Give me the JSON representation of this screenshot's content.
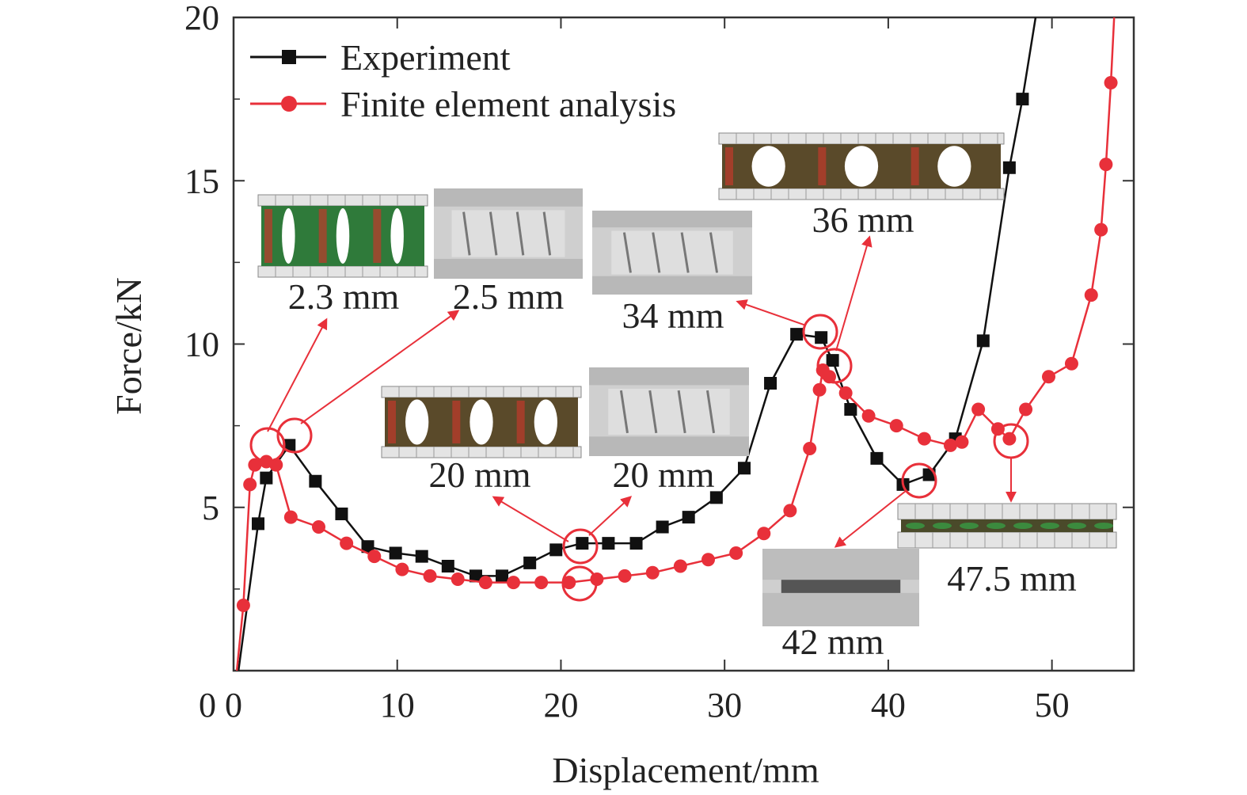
{
  "chart_data": {
    "type": "line",
    "xlabel": "Displacement/mm",
    "ylabel": "Force/kN",
    "xlim": [
      0,
      55
    ],
    "ylim": [
      0,
      20
    ],
    "xticks": [
      0,
      10,
      20,
      30,
      40,
      50
    ],
    "yticks": [
      5,
      10,
      15,
      20
    ],
    "grid": false,
    "legend_position": "top-left",
    "series": [
      {
        "name": "Experiment",
        "color": "#111111",
        "marker": "square",
        "x": [
          0.3,
          1.5,
          2.0,
          3.4,
          5.0,
          6.6,
          8.2,
          9.9,
          11.5,
          13.1,
          14.8,
          16.4,
          18.1,
          19.7,
          21.3,
          22.9,
          24.6,
          26.2,
          27.8,
          29.5,
          31.2,
          32.8,
          34.4,
          35.9,
          36.6,
          37.7,
          39.3,
          40.9,
          42.5,
          44.1,
          45.8,
          47.4,
          48.2,
          49.0
        ],
        "y": [
          0.0,
          4.5,
          5.9,
          6.9,
          5.8,
          4.8,
          3.8,
          3.6,
          3.5,
          3.2,
          2.9,
          2.9,
          3.3,
          3.7,
          3.9,
          3.9,
          3.9,
          4.4,
          4.7,
          5.3,
          6.2,
          8.8,
          10.3,
          10.2,
          9.5,
          8.0,
          6.5,
          5.7,
          6.0,
          7.1,
          10.1,
          15.4,
          17.5,
          20.0
        ]
      },
      {
        "name": "Finite element analysis",
        "color": "#e8303a",
        "marker": "circle",
        "x": [
          0.2,
          0.6,
          1.0,
          1.3,
          2.0,
          2.6,
          3.5,
          5.2,
          6.9,
          8.6,
          10.3,
          12.0,
          13.7,
          15.4,
          17.1,
          18.8,
          20.5,
          22.2,
          23.9,
          25.6,
          27.3,
          29.0,
          30.7,
          32.4,
          34.0,
          35.2,
          35.8,
          36.0,
          36.4,
          37.4,
          38.8,
          40.5,
          42.2,
          43.8,
          44.5,
          45.5,
          46.7,
          47.4,
          48.4,
          49.8,
          51.2,
          52.4,
          53.0,
          53.3,
          53.6,
          53.8
        ],
        "y": [
          0.0,
          2.0,
          5.7,
          6.3,
          6.4,
          6.3,
          4.7,
          4.4,
          3.9,
          3.5,
          3.1,
          2.9,
          2.8,
          2.7,
          2.7,
          2.7,
          2.7,
          2.8,
          2.9,
          3.0,
          3.2,
          3.4,
          3.6,
          4.2,
          4.9,
          6.8,
          8.6,
          9.2,
          9.0,
          8.5,
          7.8,
          7.5,
          7.1,
          6.9,
          7.0,
          8.0,
          7.4,
          7.1,
          8.0,
          9.0,
          9.4,
          11.5,
          13.5,
          15.5,
          18.0,
          20.0
        ]
      }
    ],
    "annotations": [
      {
        "label": "2.3 mm",
        "style": "colored"
      },
      {
        "label": "2.5 mm",
        "style": "photo"
      },
      {
        "label": "34 mm",
        "style": "photo"
      },
      {
        "label": "36 mm",
        "style": "colored"
      },
      {
        "label": "20 mm",
        "style": "colored"
      },
      {
        "label": "20 mm",
        "style": "photo"
      },
      {
        "label": "47.5 mm",
        "style": "colored"
      },
      {
        "label": "42 mm",
        "style": "photo"
      }
    ]
  }
}
